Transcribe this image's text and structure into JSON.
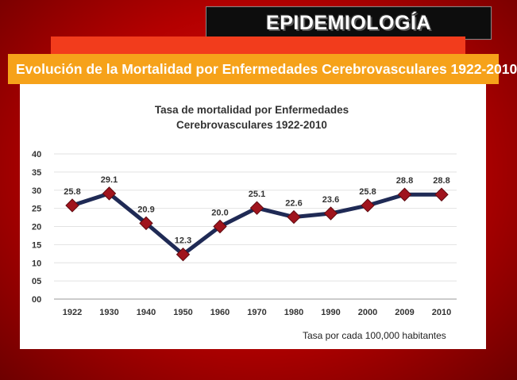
{
  "slide": {
    "header": "EPIDEMIOLOGÍA",
    "banner": "Evolución de la Mortalidad por Enfermedades Cerebrovasculares 1922-2010",
    "footnote": "Tasa por cada 100,000 habitantes"
  },
  "colors": {
    "line": "#1f2a55",
    "marker": "#a0141d",
    "banner": "#f6a21a"
  },
  "chart_data": {
    "type": "line",
    "title_lines": [
      "Tasa de mortalidad por Enfermedades",
      "Cerebrovasculares 1922-2010"
    ],
    "categories": [
      "1922",
      "1930",
      "1940",
      "1950",
      "1960",
      "1970",
      "1980",
      "1990",
      "2000",
      "2009",
      "2010"
    ],
    "values": [
      25.8,
      29.1,
      20.9,
      12.3,
      20.0,
      25.1,
      22.6,
      23.6,
      25.8,
      28.8,
      28.8
    ],
    "value_labels": [
      "25.8",
      "29.1",
      "20.9",
      "12.3",
      "20.0",
      "25.1",
      "22.6",
      "23.6",
      "25.8",
      "28.8",
      "28.8"
    ],
    "yticks": [
      "00",
      "05",
      "10",
      "15",
      "20",
      "25",
      "30",
      "35",
      "40"
    ],
    "ylim": [
      0,
      40
    ],
    "xlabel": "",
    "ylabel": "",
    "grid": true
  }
}
